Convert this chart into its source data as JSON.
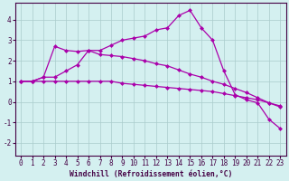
{
  "xlabel": "Windchill (Refroidissement éolien,°C)",
  "bg_color": "#d4f0f0",
  "grid_color": "#aacccc",
  "line_color": "#aa00aa",
  "xlim": [
    -0.5,
    23.5
  ],
  "ylim": [
    -2.6,
    4.8
  ],
  "xticks": [
    0,
    1,
    2,
    3,
    4,
    5,
    6,
    7,
    8,
    9,
    10,
    11,
    12,
    13,
    14,
    15,
    16,
    17,
    18,
    19,
    20,
    21,
    22,
    23
  ],
  "yticks": [
    -2,
    -1,
    0,
    1,
    2,
    3,
    4
  ],
  "line1_x": [
    0,
    1,
    2,
    3,
    4,
    5,
    6,
    7,
    8,
    9,
    10,
    11,
    12,
    13,
    14,
    15,
    16,
    17,
    18,
    19,
    20,
    21,
    22,
    23
  ],
  "line1_y": [
    1.0,
    1.0,
    1.0,
    1.0,
    1.0,
    1.0,
    1.0,
    1.0,
    1.0,
    0.9,
    0.85,
    0.8,
    0.75,
    0.7,
    0.65,
    0.6,
    0.55,
    0.5,
    0.4,
    0.3,
    0.2,
    0.1,
    -0.05,
    -0.2
  ],
  "line2_x": [
    0,
    1,
    2,
    3,
    4,
    5,
    6,
    7,
    8,
    9,
    10,
    11,
    12,
    13,
    14,
    15,
    16,
    17,
    18,
    19,
    20,
    21,
    22,
    23
  ],
  "line2_y": [
    1.0,
    1.0,
    1.2,
    2.7,
    2.5,
    2.45,
    2.5,
    2.3,
    2.25,
    2.2,
    2.1,
    2.0,
    1.85,
    1.75,
    1.55,
    1.35,
    1.2,
    1.0,
    0.85,
    0.65,
    0.45,
    0.2,
    -0.05,
    -0.25
  ],
  "line3_x": [
    0,
    1,
    2,
    3,
    4,
    5,
    6,
    7,
    8,
    9,
    10,
    11,
    12,
    13,
    14,
    15,
    16,
    17,
    18,
    19,
    20,
    21,
    22,
    23
  ],
  "line3_y": [
    1.0,
    1.0,
    1.2,
    1.2,
    1.5,
    1.8,
    2.5,
    2.5,
    2.75,
    3.0,
    3.1,
    3.2,
    3.5,
    3.6,
    4.2,
    4.45,
    3.6,
    3.0,
    1.5,
    0.35,
    0.1,
    -0.05,
    -0.85,
    -1.3
  ],
  "marker": "D",
  "markersize": 2.5,
  "linewidth": 0.9,
  "tick_fontsize": 5.5,
  "xlabel_fontsize": 5.8
}
